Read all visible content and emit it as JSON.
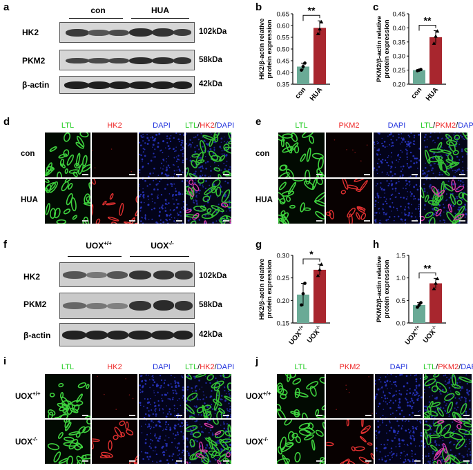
{
  "panels": {
    "a": {
      "letter": "a",
      "groups": [
        "con",
        "HUA"
      ],
      "proteins": [
        {
          "name": "HK2",
          "kda": "102kDa"
        },
        {
          "name": "PKM2",
          "kda": "58kDa"
        },
        {
          "name": "β-actin",
          "kda": "42kDa"
        }
      ]
    },
    "b": {
      "letter": "b"
    },
    "c": {
      "letter": "c"
    },
    "d": {
      "letter": "d",
      "channels": [
        {
          "text": "LTL",
          "color": "#22cc22"
        },
        {
          "text": "HK2",
          "color": "#ee2222"
        },
        {
          "text": "DAPI",
          "color": "#2233dd"
        }
      ],
      "merge_parts": [
        {
          "text": "LTL",
          "color": "#22cc22"
        },
        {
          "text": "/",
          "color": "#000000"
        },
        {
          "text": "HK2",
          "color": "#ee2222"
        },
        {
          "text": "/",
          "color": "#000000"
        },
        {
          "text": "DAPI",
          "color": "#2233dd"
        }
      ],
      "rows": [
        "con",
        "HUA"
      ]
    },
    "e": {
      "letter": "e",
      "channels": [
        {
          "text": "LTL",
          "color": "#22cc22"
        },
        {
          "text": "PKM2",
          "color": "#ee2222"
        },
        {
          "text": "DAPI",
          "color": "#2233dd"
        }
      ],
      "merge_parts": [
        {
          "text": "LTL",
          "color": "#22cc22"
        },
        {
          "text": "/",
          "color": "#000000"
        },
        {
          "text": "PKM2",
          "color": "#ee2222"
        },
        {
          "text": "/",
          "color": "#000000"
        },
        {
          "text": "DAPI",
          "color": "#2233dd"
        }
      ],
      "rows": [
        "con",
        "HUA"
      ]
    },
    "f": {
      "letter": "f",
      "groups": [
        "UOX+/+",
        "UOX-/-"
      ],
      "proteins": [
        {
          "name": "HK2",
          "kda": "102kDa"
        },
        {
          "name": "PKM2",
          "kda": "58kDa"
        },
        {
          "name": "β-actin",
          "kda": "42kDa"
        }
      ]
    },
    "g": {
      "letter": "g"
    },
    "h": {
      "letter": "h"
    },
    "i": {
      "letter": "i",
      "channels": [
        {
          "text": "LTL",
          "color": "#22cc22"
        },
        {
          "text": "HK2",
          "color": "#ee2222"
        },
        {
          "text": "DAPI",
          "color": "#2233dd"
        }
      ],
      "merge_parts": [
        {
          "text": "LTL",
          "color": "#22cc22"
        },
        {
          "text": "/",
          "color": "#000000"
        },
        {
          "text": "HK2",
          "color": "#ee2222"
        },
        {
          "text": "/",
          "color": "#000000"
        },
        {
          "text": "DAPI",
          "color": "#2233dd"
        }
      ],
      "rows": [
        "UOX+/+",
        "UOX-/-"
      ]
    },
    "j": {
      "letter": "j",
      "channels": [
        {
          "text": "LTL",
          "color": "#22cc22"
        },
        {
          "text": "PKM2",
          "color": "#ee2222"
        },
        {
          "text": "DAPI",
          "color": "#2233dd"
        }
      ],
      "merge_parts": [
        {
          "text": "LTL",
          "color": "#22cc22"
        },
        {
          "text": "/",
          "color": "#000000"
        },
        {
          "text": "PKM2",
          "color": "#ee2222"
        },
        {
          "text": "/",
          "color": "#000000"
        },
        {
          "text": "DAPI",
          "color": "#2233dd"
        }
      ],
      "rows": [
        "UOX+/+",
        "UOX-/-"
      ]
    }
  },
  "chart_data": [
    {
      "panel": "b",
      "type": "bar",
      "categories": [
        "con",
        "HUA"
      ],
      "values": [
        0.425,
        0.59
      ],
      "errors": [
        0.015,
        0.03
      ],
      "points": [
        [
          0.41,
          0.425,
          0.44
        ],
        [
          0.565,
          0.585,
          0.615
        ]
      ],
      "ylabel": "HK2/β-actin relative\nprotein expression",
      "ylim": [
        0.35,
        0.65
      ],
      "yticks": [
        "0.35",
        "0.40",
        "0.45",
        "0.50",
        "0.55",
        "0.60",
        "0.65"
      ],
      "significance": "**",
      "colors": [
        "#6aaa96",
        "#a8262e"
      ]
    },
    {
      "panel": "c",
      "type": "bar",
      "categories": [
        "con",
        "HUA"
      ],
      "values": [
        0.25,
        0.367
      ],
      "errors": [
        0.002,
        0.023
      ],
      "points": [
        [
          0.248,
          0.25,
          0.252
        ],
        [
          0.345,
          0.37,
          0.388
        ]
      ],
      "ylabel": "PKM2/β-actin relative\nprotein expression",
      "ylim": [
        0.2,
        0.45
      ],
      "yticks": [
        "0.20",
        "0.25",
        "0.30",
        "0.35",
        "0.40",
        "0.45"
      ],
      "significance": "**",
      "colors": [
        "#6aaa96",
        "#a8262e"
      ]
    },
    {
      "panel": "g",
      "type": "bar",
      "categories": [
        "UOX+/+",
        "UOX-/-"
      ],
      "values": [
        0.213,
        0.268
      ],
      "errors": [
        0.025,
        0.012
      ],
      "points": [
        [
          0.19,
          0.215,
          0.238
        ],
        [
          0.255,
          0.268,
          0.28
        ]
      ],
      "ylabel": "HK2/β-actin relative\nprotein expression",
      "ylim": [
        0.15,
        0.3
      ],
      "yticks": [
        "0.15",
        "0.20",
        "0.25",
        "0.30"
      ],
      "significance": "*",
      "colors": [
        "#6aaa96",
        "#a8262e"
      ]
    },
    {
      "panel": "h",
      "type": "bar",
      "categories": [
        "UOX+/+",
        "UOX-/-"
      ],
      "values": [
        0.4,
        0.88
      ],
      "errors": [
        0.05,
        0.11
      ],
      "points": [
        [
          0.35,
          0.4,
          0.45
        ],
        [
          0.76,
          0.88,
          0.98
        ]
      ],
      "ylabel": "PKM2/β-actin relative\nprotein expression",
      "ylim": [
        0.0,
        1.5
      ],
      "yticks": [
        "0.0",
        "0.5",
        "1.0",
        "1.5"
      ],
      "significance": "**",
      "colors": [
        "#6aaa96",
        "#a8262e"
      ]
    }
  ]
}
